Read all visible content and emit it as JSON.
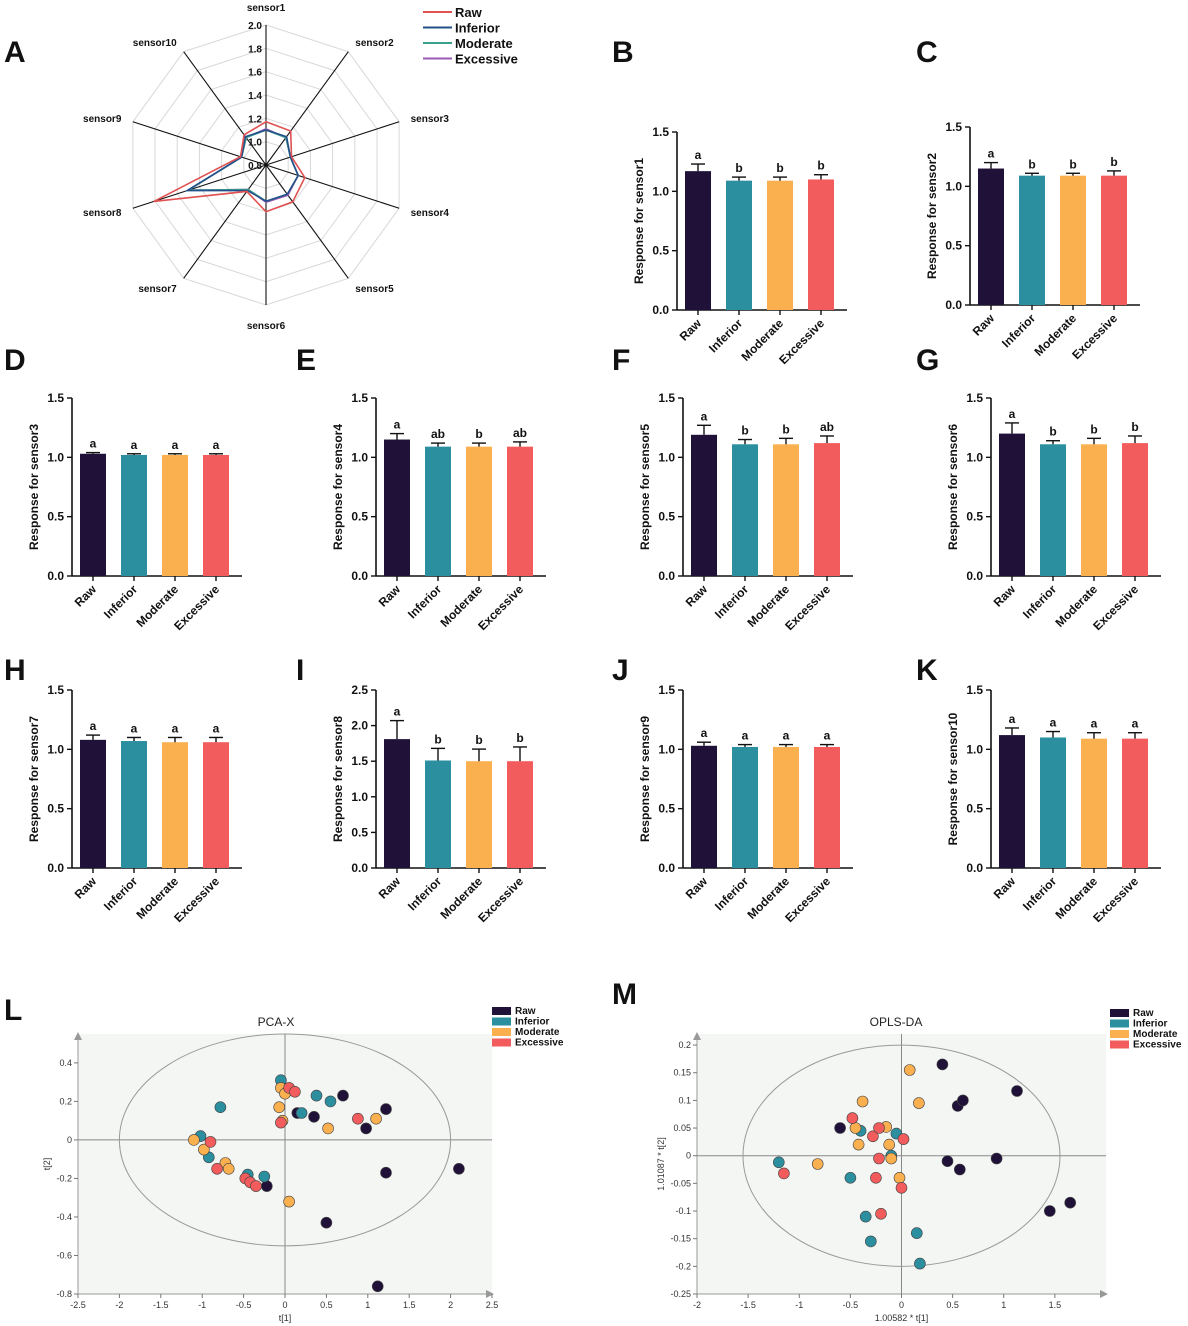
{
  "colors": {
    "raw": "#1f1138",
    "inferior": "#2b8f9f",
    "moderate": "#fbb050",
    "excessive": "#f35c5c",
    "radar_raw": "#e05252",
    "radar_inferior": "#23508a",
    "radar_moderate": "#3aa08a",
    "radar_excessive": "#9b59b6",
    "axis": "#222222",
    "scatter_bg": "#f4f6f4"
  },
  "groups": [
    "Raw",
    "Inferior",
    "Moderate",
    "Excessive"
  ],
  "chart_data": [
    {
      "id": "A",
      "type": "radar",
      "letter": "A",
      "axes": [
        "sensor1",
        "sensor2",
        "sensor3",
        "sensor4",
        "sensor5",
        "sensor6",
        "sensor7",
        "sensor8",
        "sensor9",
        "sensor10"
      ],
      "rings": [
        0.8,
        1.0,
        1.2,
        1.4,
        1.6,
        1.8,
        2.0
      ],
      "ring_labels": [
        "0.8",
        "1.0",
        "1.2",
        "1.4",
        "1.6",
        "1.8",
        "2.0"
      ],
      "range": [
        0.8,
        2.0
      ],
      "legend_position": "top-right",
      "series": [
        {
          "name": "Raw",
          "values": [
            1.17,
            1.16,
            1.03,
            1.15,
            1.19,
            1.2,
            1.08,
            1.81,
            1.03,
            1.12
          ]
        },
        {
          "name": "Inferior",
          "values": [
            1.1,
            1.1,
            1.02,
            1.09,
            1.11,
            1.11,
            1.07,
            1.51,
            1.02,
            1.1
          ]
        },
        {
          "name": "Moderate",
          "values": [
            1.1,
            1.09,
            1.02,
            1.09,
            1.11,
            1.11,
            1.06,
            1.5,
            1.02,
            1.09
          ]
        },
        {
          "name": "Excessive",
          "values": [
            1.11,
            1.09,
            1.02,
            1.09,
            1.12,
            1.12,
            1.06,
            1.5,
            1.02,
            1.09
          ]
        }
      ]
    },
    {
      "id": "B",
      "type": "bar",
      "letter": "B",
      "categories": [
        "Raw",
        "Inferior",
        "Moderate",
        "Excessive"
      ],
      "values": [
        1.17,
        1.09,
        1.09,
        1.1
      ],
      "errors": [
        0.06,
        0.03,
        0.03,
        0.04
      ],
      "sig": [
        "a",
        "b",
        "b",
        "b"
      ],
      "ylabel": "Response for sensor1",
      "ylim": [
        0,
        1.5
      ],
      "yticks": [
        "0.0",
        "0.5",
        "1.0",
        "1.5"
      ]
    },
    {
      "id": "C",
      "type": "bar",
      "letter": "C",
      "categories": [
        "Raw",
        "Inferior",
        "Moderate",
        "Excessive"
      ],
      "values": [
        1.15,
        1.09,
        1.09,
        1.09
      ],
      "errors": [
        0.05,
        0.02,
        0.02,
        0.04
      ],
      "sig": [
        "a",
        "b",
        "b",
        "b"
      ],
      "ylabel": "Response for sensor2",
      "ylim": [
        0,
        1.5
      ],
      "yticks": [
        "0.0",
        "0.5",
        "1.0",
        "1.5"
      ]
    },
    {
      "id": "D",
      "type": "bar",
      "letter": "D",
      "categories": [
        "Raw",
        "Inferior",
        "Moderate",
        "Excessive"
      ],
      "values": [
        1.03,
        1.02,
        1.02,
        1.02
      ],
      "errors": [
        0.01,
        0.01,
        0.01,
        0.01
      ],
      "sig": [
        "a",
        "a",
        "a",
        "a"
      ],
      "ylabel": "Response for sensor3",
      "ylim": [
        0,
        1.5
      ],
      "yticks": [
        "0.0",
        "0.5",
        "1.0",
        "1.5"
      ]
    },
    {
      "id": "E",
      "type": "bar",
      "letter": "E",
      "categories": [
        "Raw",
        "Inferior",
        "Moderate",
        "Excessive"
      ],
      "values": [
        1.15,
        1.09,
        1.09,
        1.09
      ],
      "errors": [
        0.05,
        0.03,
        0.03,
        0.04
      ],
      "sig": [
        "a",
        "ab",
        "b",
        "ab"
      ],
      "ylabel": "Response for sensor4",
      "ylim": [
        0,
        1.5
      ],
      "yticks": [
        "0.0",
        "0.5",
        "1.0",
        "1.5"
      ]
    },
    {
      "id": "F",
      "type": "bar",
      "letter": "F",
      "categories": [
        "Raw",
        "Inferior",
        "Moderate",
        "Excessive"
      ],
      "values": [
        1.19,
        1.11,
        1.11,
        1.12
      ],
      "errors": [
        0.08,
        0.04,
        0.05,
        0.06
      ],
      "sig": [
        "a",
        "b",
        "b",
        "ab"
      ],
      "ylabel": "Response for sensor5",
      "ylim": [
        0,
        1.5
      ],
      "yticks": [
        "0.0",
        "0.5",
        "1.0",
        "1.5"
      ]
    },
    {
      "id": "G",
      "type": "bar",
      "letter": "G",
      "categories": [
        "Raw",
        "Inferior",
        "Moderate",
        "Excessive"
      ],
      "values": [
        1.2,
        1.11,
        1.11,
        1.12
      ],
      "errors": [
        0.09,
        0.03,
        0.05,
        0.06
      ],
      "sig": [
        "a",
        "b",
        "b",
        "b"
      ],
      "ylabel": "Response for sensor6",
      "ylim": [
        0,
        1.5
      ],
      "yticks": [
        "0.0",
        "0.5",
        "1.0",
        "1.5"
      ]
    },
    {
      "id": "H",
      "type": "bar",
      "letter": "H",
      "categories": [
        "Raw",
        "Inferior",
        "Moderate",
        "Excessive"
      ],
      "values": [
        1.08,
        1.07,
        1.06,
        1.06
      ],
      "errors": [
        0.04,
        0.03,
        0.04,
        0.04
      ],
      "sig": [
        "a",
        "a",
        "a",
        "a"
      ],
      "ylabel": "Response for sensor7",
      "ylim": [
        0,
        1.5
      ],
      "yticks": [
        "0.0",
        "0.5",
        "1.0",
        "1.5"
      ]
    },
    {
      "id": "I",
      "type": "bar",
      "letter": "I",
      "categories": [
        "Raw",
        "Inferior",
        "Moderate",
        "Excessive"
      ],
      "values": [
        1.81,
        1.51,
        1.5,
        1.5
      ],
      "errors": [
        0.26,
        0.17,
        0.17,
        0.2
      ],
      "sig": [
        "a",
        "b",
        "b",
        "b"
      ],
      "ylabel": "Response for sensor8",
      "ylim": [
        0,
        2.5
      ],
      "yticks": [
        "0.0",
        "0.5",
        "1.0",
        "1.5",
        "2.0",
        "2.5"
      ]
    },
    {
      "id": "J",
      "type": "bar",
      "letter": "J",
      "categories": [
        "Raw",
        "Inferior",
        "Moderate",
        "Excessive"
      ],
      "values": [
        1.03,
        1.02,
        1.02,
        1.02
      ],
      "errors": [
        0.03,
        0.02,
        0.02,
        0.02
      ],
      "sig": [
        "a",
        "a",
        "a",
        "a"
      ],
      "ylabel": "Response for sensor9",
      "ylim": [
        0,
        1.5
      ],
      "yticks": [
        "0.0",
        "0.5",
        "1.0",
        "1.5"
      ]
    },
    {
      "id": "K",
      "type": "bar",
      "letter": "K",
      "categories": [
        "Raw",
        "Inferior",
        "Moderate",
        "Excessive"
      ],
      "values": [
        1.12,
        1.1,
        1.09,
        1.09
      ],
      "errors": [
        0.06,
        0.05,
        0.05,
        0.05
      ],
      "sig": [
        "a",
        "a",
        "a",
        "a"
      ],
      "ylabel": "Response for sensor10",
      "ylim": [
        0,
        1.5
      ],
      "yticks": [
        "0.0",
        "0.5",
        "1.0",
        "1.5"
      ]
    },
    {
      "id": "L",
      "type": "scatter",
      "letter": "L",
      "title": "PCA-X",
      "xlabel": "t[1]",
      "ylabel": "t[2]",
      "xlim": [
        -2.5,
        2.5
      ],
      "ylim": [
        -0.8,
        0.55
      ],
      "xticks": [
        "-2.5",
        "-2",
        "-1.5",
        "-1",
        "-0.5",
        "0",
        "0.5",
        "1",
        "1.5",
        "2",
        "2.5"
      ],
      "yticks": [
        "-0.8",
        "-0.6",
        "-0.4",
        "-0.2",
        "0",
        "0.2",
        "0.4"
      ],
      "legend": [
        "Raw",
        "Inferior",
        "Moderate",
        "Excessive"
      ],
      "ellipse": {
        "cx": 0,
        "cy": 0,
        "rx": 2.0,
        "ry": 0.55
      },
      "points": [
        [
          0.15,
          0.14,
          "Raw"
        ],
        [
          0.35,
          0.12,
          "Raw"
        ],
        [
          0.7,
          0.23,
          "Raw"
        ],
        [
          1.22,
          0.16,
          "Raw"
        ],
        [
          0.98,
          0.06,
          "Raw"
        ],
        [
          1.22,
          -0.17,
          "Raw"
        ],
        [
          2.1,
          -0.15,
          "Raw"
        ],
        [
          0.5,
          -0.43,
          "Raw"
        ],
        [
          1.12,
          -0.76,
          "Raw"
        ],
        [
          -0.22,
          -0.24,
          "Raw"
        ],
        [
          -0.05,
          0.31,
          "Inferior"
        ],
        [
          0.2,
          0.14,
          "Inferior"
        ],
        [
          0.38,
          0.23,
          "Inferior"
        ],
        [
          0.55,
          0.2,
          "Inferior"
        ],
        [
          -0.78,
          0.17,
          "Inferior"
        ],
        [
          -1.02,
          0.02,
          "Inferior"
        ],
        [
          -0.92,
          -0.09,
          "Inferior"
        ],
        [
          -0.45,
          -0.18,
          "Inferior"
        ],
        [
          -0.25,
          -0.19,
          "Inferior"
        ],
        [
          -1.1,
          0.0,
          "Moderate"
        ],
        [
          -0.98,
          -0.05,
          "Moderate"
        ],
        [
          -0.72,
          -0.12,
          "Moderate"
        ],
        [
          -0.68,
          -0.15,
          "Moderate"
        ],
        [
          -0.05,
          0.27,
          "Moderate"
        ],
        [
          0.0,
          0.24,
          "Moderate"
        ],
        [
          -0.07,
          0.17,
          "Moderate"
        ],
        [
          -0.03,
          0.1,
          "Moderate"
        ],
        [
          0.52,
          0.06,
          "Moderate"
        ],
        [
          1.1,
          0.11,
          "Moderate"
        ],
        [
          0.05,
          -0.32,
          "Moderate"
        ],
        [
          0.05,
          0.27,
          "Excessive"
        ],
        [
          0.12,
          0.25,
          "Excessive"
        ],
        [
          -0.05,
          0.09,
          "Excessive"
        ],
        [
          -0.9,
          -0.01,
          "Excessive"
        ],
        [
          -0.82,
          -0.15,
          "Excessive"
        ],
        [
          -0.48,
          -0.2,
          "Excessive"
        ],
        [
          -0.42,
          -0.22,
          "Excessive"
        ],
        [
          -0.35,
          -0.24,
          "Excessive"
        ],
        [
          0.88,
          0.11,
          "Excessive"
        ]
      ]
    },
    {
      "id": "M",
      "type": "scatter",
      "letter": "M",
      "title": "OPLS-DA",
      "xlabel": "1.00582 * t[1]",
      "ylabel": "1.01087 * t[2]",
      "xlim": [
        -2.0,
        2.0
      ],
      "ylim": [
        -0.25,
        0.22
      ],
      "xticks": [
        "-2",
        "-1.5",
        "-1",
        "-0.5",
        "0",
        "0.5",
        "1",
        "1.5"
      ],
      "yticks": [
        "-0.25",
        "-0.2",
        "-0.15",
        "-0.1",
        "-0.05",
        "0",
        "0.05",
        "0.1",
        "0.15",
        "0.2"
      ],
      "legend": [
        "Raw",
        "Inferior",
        "Moderate",
        "Excessive"
      ],
      "ellipse": {
        "cx": 0,
        "cy": 0,
        "rx": 1.55,
        "ry": 0.2
      },
      "points": [
        [
          0.4,
          0.165,
          "Raw"
        ],
        [
          0.55,
          0.09,
          "Raw"
        ],
        [
          0.6,
          0.1,
          "Raw"
        ],
        [
          1.13,
          0.117,
          "Raw"
        ],
        [
          -0.6,
          0.05,
          "Raw"
        ],
        [
          0.45,
          -0.01,
          "Raw"
        ],
        [
          0.57,
          -0.025,
          "Raw"
        ],
        [
          0.93,
          -0.005,
          "Raw"
        ],
        [
          1.45,
          -0.1,
          "Raw"
        ],
        [
          1.65,
          -0.085,
          "Raw"
        ],
        [
          -1.2,
          -0.012,
          "Inferior"
        ],
        [
          -0.5,
          -0.04,
          "Inferior"
        ],
        [
          -0.35,
          -0.11,
          "Inferior"
        ],
        [
          -0.3,
          -0.155,
          "Inferior"
        ],
        [
          -0.1,
          0.0,
          "Inferior"
        ],
        [
          -0.05,
          0.04,
          "Inferior"
        ],
        [
          0.15,
          -0.14,
          "Inferior"
        ],
        [
          0.18,
          -0.195,
          "Inferior"
        ],
        [
          -0.4,
          0.045,
          "Inferior"
        ],
        [
          -0.82,
          -0.015,
          "Moderate"
        ],
        [
          -0.38,
          0.098,
          "Moderate"
        ],
        [
          -0.45,
          0.05,
          "Moderate"
        ],
        [
          -0.42,
          0.02,
          "Moderate"
        ],
        [
          -0.15,
          0.052,
          "Moderate"
        ],
        [
          -0.12,
          0.02,
          "Moderate"
        ],
        [
          -0.1,
          -0.005,
          "Moderate"
        ],
        [
          0.08,
          0.155,
          "Moderate"
        ],
        [
          0.17,
          0.095,
          "Moderate"
        ],
        [
          -0.02,
          -0.04,
          "Moderate"
        ],
        [
          -1.15,
          -0.032,
          "Excessive"
        ],
        [
          -0.48,
          0.068,
          "Excessive"
        ],
        [
          -0.28,
          0.035,
          "Excessive"
        ],
        [
          -0.22,
          0.05,
          "Excessive"
        ],
        [
          -0.22,
          -0.005,
          "Excessive"
        ],
        [
          0.02,
          0.03,
          "Excessive"
        ],
        [
          -0.2,
          -0.105,
          "Excessive"
        ],
        [
          -0.25,
          -0.04,
          "Excessive"
        ],
        [
          0.0,
          -0.058,
          "Excessive"
        ]
      ]
    }
  ]
}
